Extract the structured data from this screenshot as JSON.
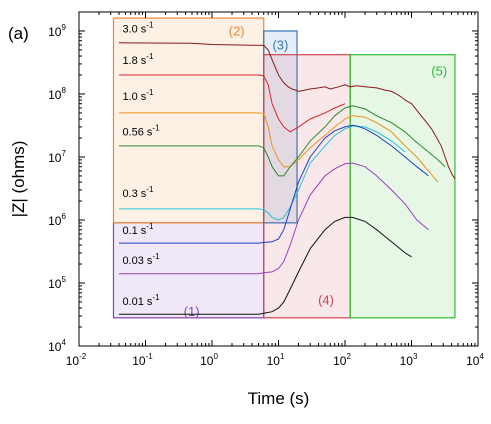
{
  "chart_data": {
    "type": "line",
    "panel_label": "(a)",
    "xlabel": "Time (s)",
    "ylabel": "|Z| (ohms)",
    "xscale": "log",
    "yscale": "log",
    "xlim": [
      0.01,
      10000
    ],
    "ylim": [
      10000,
      2000000000
    ],
    "x_ticks": [
      {
        "value": 0.01,
        "mantissa": "10",
        "exp": "-2"
      },
      {
        "value": 0.1,
        "mantissa": "10",
        "exp": "-1"
      },
      {
        "value": 1,
        "mantissa": "10",
        "exp": "0"
      },
      {
        "value": 10,
        "mantissa": "10",
        "exp": "1"
      },
      {
        "value": 100,
        "mantissa": "10",
        "exp": "2"
      },
      {
        "value": 1000,
        "mantissa": "10",
        "exp": "3"
      },
      {
        "value": 10000,
        "mantissa": "10",
        "exp": "4"
      }
    ],
    "y_ticks": [
      {
        "value": 10000,
        "mantissa": "10",
        "exp": "4"
      },
      {
        "value": 100000,
        "mantissa": "10",
        "exp": "5"
      },
      {
        "value": 1000000,
        "mantissa": "10",
        "exp": "6"
      },
      {
        "value": 10000000,
        "mantissa": "10",
        "exp": "7"
      },
      {
        "value": 100000000,
        "mantissa": "10",
        "exp": "8"
      },
      {
        "value": 1000000000,
        "mantissa": "10",
        "exp": "9"
      }
    ],
    "regions": [
      {
        "label": "(1)",
        "x": [
          0.033,
          6
        ],
        "y": [
          28000,
          900000
        ],
        "color": "#8844bb"
      },
      {
        "label": "(2)",
        "x": [
          0.033,
          6
        ],
        "y": [
          900000,
          1600000000
        ],
        "color": "#ee8833"
      },
      {
        "label": "(3)",
        "x": [
          6,
          19
        ],
        "y": [
          900000,
          1000000000
        ],
        "color": "#3377bb"
      },
      {
        "label": "(4)",
        "x": [
          6,
          120
        ],
        "y": [
          28000,
          420000000
        ],
        "color": "#cc4455"
      },
      {
        "label": "(5)",
        "x": [
          120,
          4500
        ],
        "y": [
          28000,
          420000000
        ],
        "color": "#33bb33"
      }
    ],
    "series": [
      {
        "name": "3.0 s",
        "unit_exp": "-1",
        "color": "#8b1a1a",
        "label_at": [
          0.045,
          950000000
        ],
        "x": [
          0.04,
          0.5,
          1,
          2,
          4,
          6,
          7,
          8,
          10,
          12,
          14,
          16,
          18,
          20,
          25,
          30,
          40,
          50,
          60,
          80,
          100,
          120,
          150,
          200,
          300,
          400,
          500,
          600,
          700,
          800,
          1000,
          1200,
          1400,
          1700,
          2000,
          2400,
          2800,
          3200,
          3600,
          4000,
          4500
        ],
        "y": [
          650000000,
          640000000,
          610000000,
          600000000,
          595000000,
          590000000,
          500000000,
          350000000,
          200000000,
          150000000,
          130000000,
          120000000,
          115000000,
          110000000,
          115000000,
          120000000,
          125000000,
          130000000,
          120000000,
          130000000,
          140000000,
          130000000,
          135000000,
          130000000,
          125000000,
          115000000,
          110000000,
          100000000,
          90000000,
          80000000,
          70000000,
          55000000,
          45000000,
          35000000,
          28000000,
          20000000,
          15000000,
          10000000,
          7000000,
          5500000,
          4500000
        ]
      },
      {
        "name": "1.8 s",
        "unit_exp": "-1",
        "color": "#d62728",
        "label_at": [
          0.045,
          300000000
        ],
        "x": [
          0.04,
          1,
          5,
          6,
          7,
          8,
          10,
          12,
          15,
          20,
          30,
          50,
          70,
          100
        ],
        "y": [
          200000000,
          200000000,
          200000000,
          195000000,
          140000000,
          70000000,
          40000000,
          30000000,
          25000000,
          30000000,
          40000000,
          50000000,
          60000000,
          70000000
        ]
      },
      {
        "name": "1.0 s",
        "unit_exp": "-1",
        "color": "#e8951c",
        "label_at": [
          0.045,
          80000000
        ],
        "x": [
          0.04,
          1,
          5,
          6,
          7,
          8,
          10,
          12,
          15,
          20,
          30,
          50,
          70,
          100,
          130,
          200,
          300,
          500,
          800,
          1200,
          1800,
          2500
        ],
        "y": [
          50000000,
          50000000,
          50000000,
          49000000,
          30000000,
          15000000,
          9000000,
          7000000,
          7000000,
          9000000,
          14000000,
          22000000,
          30000000,
          40000000,
          45000000,
          43000000,
          35000000,
          25000000,
          15000000,
          10000000,
          6000000,
          4000000
        ]
      },
      {
        "name": "0.56 s",
        "unit_exp": "-1",
        "color": "#2c8a2c",
        "label_at": [
          0.045,
          22000000
        ],
        "x": [
          0.04,
          1,
          5,
          6,
          7,
          8,
          10,
          12,
          15,
          20,
          30,
          50,
          70,
          100,
          130,
          200,
          300,
          500,
          800,
          1200,
          1800,
          2500,
          3200
        ],
        "y": [
          15000000,
          15000000,
          15000000,
          14000000,
          10000000,
          7000000,
          5000000,
          5000000,
          7000000,
          10000000,
          18000000,
          30000000,
          45000000,
          60000000,
          65000000,
          58000000,
          45000000,
          35000000,
          25000000,
          17000000,
          12000000,
          9000000,
          7000000
        ]
      },
      {
        "name": "0.3 s",
        "unit_exp": "-1",
        "color": "#27c2d1",
        "label_at": [
          0.045,
          2300000
        ],
        "x": [
          0.04,
          1,
          5,
          6,
          7,
          8,
          10,
          12,
          15,
          20,
          30,
          50,
          70,
          100,
          130,
          200,
          300,
          500,
          800
        ],
        "y": [
          1500000,
          1500000,
          1500000,
          1450000,
          1300000,
          1100000,
          1000000,
          1100000,
          1600000,
          3000000,
          8000000,
          15000000,
          22000000,
          28000000,
          31000000,
          30000000,
          25000000,
          18000000,
          12000000
        ]
      },
      {
        "name": "0.1 s",
        "unit_exp": "-1",
        "color": "#1f3fbf",
        "label_at": [
          0.045,
          600000
        ],
        "x": [
          0.04,
          1,
          5,
          6,
          8,
          10,
          12,
          15,
          20,
          30,
          50,
          70,
          100,
          130,
          150,
          200,
          300,
          500,
          800,
          1200,
          1800
        ],
        "y": [
          430000,
          430000,
          430000,
          440000,
          450000,
          500000,
          700000,
          1500000,
          4000000,
          10000000,
          20000000,
          26000000,
          30000000,
          32000000,
          31000000,
          28000000,
          22000000,
          15000000,
          10000000,
          7000000,
          5000000
        ]
      },
      {
        "name": "0.03 s",
        "unit_exp": "-1",
        "color": "#9b3fbf",
        "label_at": [
          0.045,
          200000
        ],
        "x": [
          0.04,
          1,
          5,
          6,
          8,
          10,
          12,
          15,
          20,
          30,
          50,
          70,
          100,
          130,
          200,
          300,
          500,
          800,
          1200,
          1800
        ],
        "y": [
          140000,
          140000,
          140000,
          145000,
          150000,
          170000,
          220000,
          400000,
          1000000,
          2500000,
          5000000,
          6500000,
          7800000,
          8000000,
          7000000,
          5000000,
          3000000,
          1800000,
          1000000,
          700000
        ]
      },
      {
        "name": "0.01 s",
        "unit_exp": "-1",
        "color": "#111111",
        "label_at": [
          0.045,
          45000
        ],
        "x": [
          0.04,
          1,
          5,
          6,
          8,
          10,
          12,
          15,
          20,
          30,
          50,
          70,
          100,
          130,
          200,
          300,
          500,
          800,
          1000
        ],
        "y": [
          32000,
          32000,
          32000,
          33000,
          35000,
          40000,
          50000,
          80000,
          150000,
          350000,
          700000,
          950000,
          1100000,
          1100000,
          950000,
          700000,
          450000,
          300000,
          260000
        ]
      }
    ]
  }
}
